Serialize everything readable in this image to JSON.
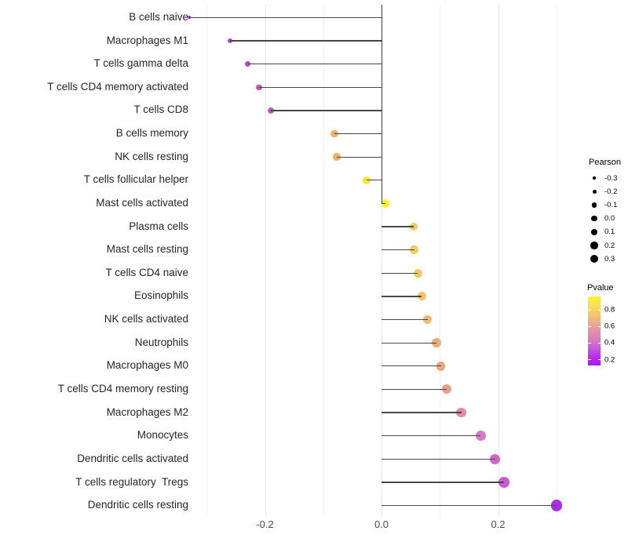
{
  "chart_data": {
    "type": "lollipop",
    "orientation": "horizontal",
    "title": "",
    "xlabel": "",
    "ylabel": "",
    "x_ticks": [
      {
        "label": "-0.2",
        "value": -0.2
      },
      {
        "label": "0.0",
        "value": 0.0
      },
      {
        "label": "0.2",
        "value": 0.2
      }
    ],
    "gridlines_major": [
      -0.2,
      0.0,
      0.2
    ],
    "gridlines_minor": [
      -0.3,
      -0.1,
      0.1,
      0.3
    ],
    "points": [
      {
        "label": "B cells naive",
        "pearson": -0.33,
        "color": "#9d28ee",
        "diameter": 4
      },
      {
        "label": "Macrophages M1",
        "pearson": -0.26,
        "color": "#a845d2",
        "diameter": 6.5
      },
      {
        "label": "T cells gamma delta",
        "pearson": -0.23,
        "color": "#b34fcb",
        "diameter": 7
      },
      {
        "label": "T cells CD4 memory activated",
        "pearson": -0.21,
        "color": "#bb55c6",
        "diameter": 7.5
      },
      {
        "label": "T cells CD8",
        "pearson": -0.19,
        "color": "#c35ec1",
        "diameter": 8
      },
      {
        "label": "B cells memory",
        "pearson": -0.081,
        "color": "#efb164",
        "diameter": 9.5
      },
      {
        "label": "NK cells resting",
        "pearson": -0.077,
        "color": "#efb167",
        "diameter": 9.5
      },
      {
        "label": "T cells follicular helper",
        "pearson": -0.026,
        "color": "#f7e53a",
        "diameter": 10
      },
      {
        "label": "Mast cells activated",
        "pearson": 0.007,
        "color": "#fdf32b",
        "diameter": 10.5
      },
      {
        "label": "Plasma cells",
        "pearson": 0.055,
        "color": "#f2cd5d",
        "diameter": 10.5
      },
      {
        "label": "Mast cells resting",
        "pearson": 0.056,
        "color": "#f2cc5f",
        "diameter": 10.5
      },
      {
        "label": "T cells CD4 naive",
        "pearson": 0.062,
        "color": "#f1c962",
        "diameter": 11
      },
      {
        "label": "Eosinophils",
        "pearson": 0.069,
        "color": "#f0c467",
        "diameter": 11
      },
      {
        "label": "NK cells activated",
        "pearson": 0.079,
        "color": "#eeba6f",
        "diameter": 11
      },
      {
        "label": "Neutrophils",
        "pearson": 0.094,
        "color": "#edad7a",
        "diameter": 11.5
      },
      {
        "label": "Macrophages M0",
        "pearson": 0.102,
        "color": "#eba681",
        "diameter": 11.5
      },
      {
        "label": "T cells CD4 memory resting",
        "pearson": 0.112,
        "color": "#e99d8c",
        "diameter": 12
      },
      {
        "label": "Macrophages M2",
        "pearson": 0.137,
        "color": "#e389a7",
        "diameter": 12.5
      },
      {
        "label": "Monocytes",
        "pearson": 0.17,
        "color": "#d977c4",
        "diameter": 13
      },
      {
        "label": "Dendritic cells activated",
        "pearson": 0.195,
        "color": "#d165ca",
        "diameter": 13
      },
      {
        "label": "T cells regulatory  Tregs",
        "pearson": 0.21,
        "color": "#ca5ad0",
        "diameter": 13.5
      },
      {
        "label": "Dendritic cells resting",
        "pearson": 0.3,
        "color": "#a930e8",
        "diameter": 14.5
      }
    ],
    "size_legend": {
      "title": "Pearson",
      "entries": [
        {
          "label": "-0.3",
          "diameter": 3.5
        },
        {
          "label": "-0.2",
          "diameter": 5
        },
        {
          "label": "-0.1",
          "diameter": 6.5
        },
        {
          "label": "0.0",
          "diameter": 7.5
        },
        {
          "label": "0.1",
          "diameter": 8.5
        },
        {
          "label": "0.2",
          "diameter": 9.5
        },
        {
          "label": "0.3",
          "diameter": 10.5
        }
      ]
    },
    "color_legend": {
      "title": "Pvalue",
      "tick_entries": [
        {
          "label": "0.8",
          "value": 0.8
        },
        {
          "label": "0.6",
          "value": 0.6
        },
        {
          "label": "0.4",
          "value": 0.4
        },
        {
          "label": "0.2",
          "value": 0.2
        }
      ],
      "gradient_top_to_bottom": [
        "#fcf434",
        "#f8e051",
        "#f3c96c",
        "#ebad89",
        "#e194a6",
        "#d77cc0",
        "#c858dd",
        "#b32ef2",
        "#a716f6"
      ]
    },
    "colors": {
      "stem": "#474747",
      "zero_line": "#3f3f3f",
      "grid_major": "#e7e7e7",
      "grid_minor": "#f3f3f3",
      "axis_text": "#4d4d4d",
      "label_text": "#262626"
    }
  }
}
